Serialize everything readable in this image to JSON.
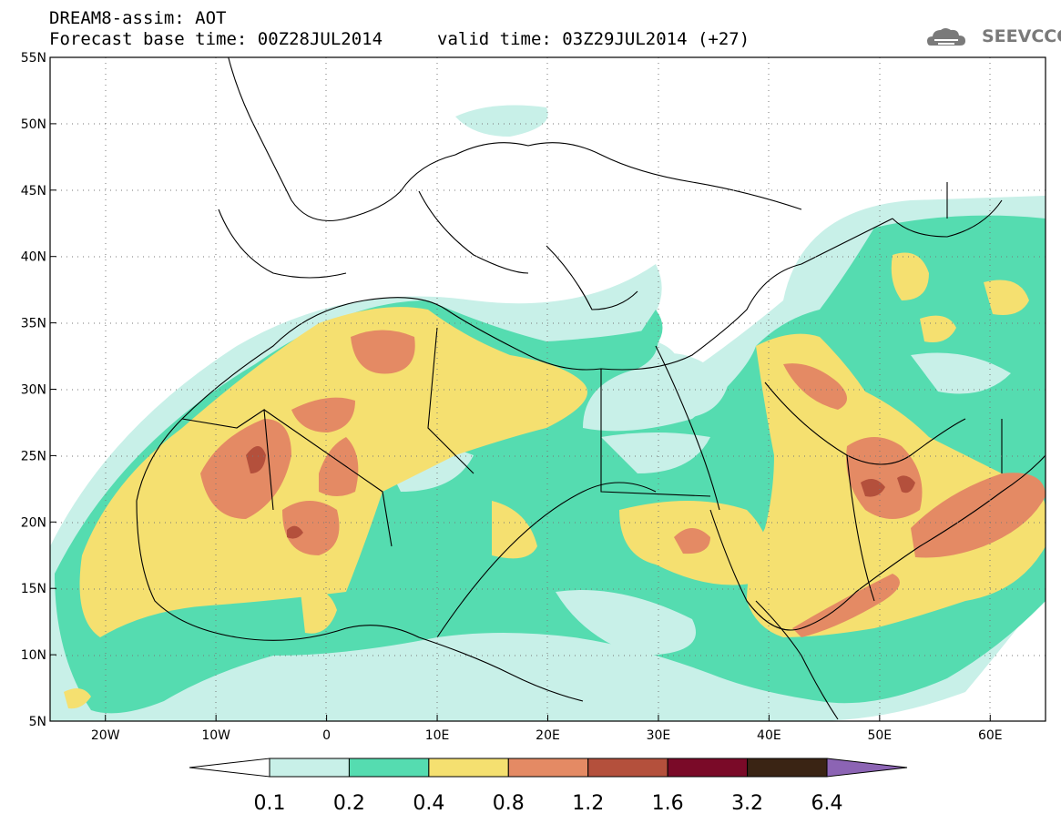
{
  "header": {
    "title": "DREAM8-assim: AOT",
    "base_time": "Forecast base time: 00Z28JUL2014",
    "valid_time": "valid time: 03Z29JUL2014 (+27)"
  },
  "logo": {
    "text": "SEEVCCC",
    "icon": "cloud-logo-icon"
  },
  "axes": {
    "lat_labels": [
      "55N",
      "50N",
      "45N",
      "40N",
      "35N",
      "30N",
      "25N",
      "20N",
      "15N",
      "10N",
      "5N"
    ],
    "lon_labels": [
      "20W",
      "10W",
      "0",
      "10E",
      "20E",
      "30E",
      "40E",
      "50E",
      "60E"
    ],
    "lat_range": [
      5,
      55
    ],
    "lon_range": [
      -25,
      65
    ]
  },
  "colorbar": {
    "labels": [
      "0.1",
      "0.2",
      "0.4",
      "0.8",
      "1.2",
      "1.6",
      "3.2",
      "6.4"
    ],
    "colors": [
      "#ffffff",
      "#c8f0e8",
      "#55dcb0",
      "#f5e070",
      "#e48a64",
      "#b4503c",
      "#7a0a28",
      "#3a2414",
      "#8c64b4"
    ]
  },
  "colors": {
    "white": "#ffffff",
    "light_cyan": "#c8f0e8",
    "green": "#55dcb0",
    "yellow": "#f5e070",
    "orange": "#e48a64",
    "red": "#b4503c",
    "dark_red": "#8a2e28"
  }
}
